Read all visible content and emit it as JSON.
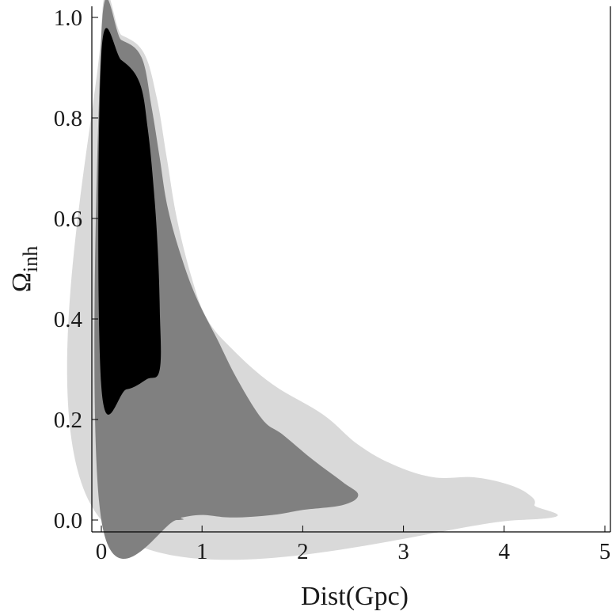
{
  "chart_data": {
    "type": "area",
    "xlabel": "Dist(Gpc)",
    "ylabel": "Ω",
    "ylabel_subscript": "inh",
    "xlim": [
      0,
      5
    ],
    "ylim": [
      0,
      1.0
    ],
    "xticks": [
      "0",
      "1",
      "2",
      "3",
      "4",
      "5"
    ],
    "yticks": [
      "0.0",
      "0.2",
      "0.4",
      "0.6",
      "0.8",
      "1.0"
    ],
    "grid": false,
    "colors": {
      "outer_region": "#d9d9d9",
      "middle_region": "#808080",
      "inner_region": "#000000"
    },
    "regions": [
      {
        "level": "outer",
        "polygon": [
          [
            0.0,
            0.975
          ],
          [
            0.2,
            0.965
          ],
          [
            0.42,
            0.93
          ],
          [
            0.55,
            0.84
          ],
          [
            0.65,
            0.72
          ],
          [
            0.75,
            0.6
          ],
          [
            0.9,
            0.48
          ],
          [
            1.05,
            0.4
          ],
          [
            1.3,
            0.34
          ],
          [
            1.7,
            0.27
          ],
          [
            2.2,
            0.21
          ],
          [
            2.55,
            0.15
          ],
          [
            2.9,
            0.11
          ],
          [
            3.3,
            0.085
          ],
          [
            3.7,
            0.085
          ],
          [
            4.05,
            0.07
          ],
          [
            4.25,
            0.05
          ],
          [
            4.3,
            0.03
          ],
          [
            4.15,
            0.0
          ],
          [
            0.0,
            0.0
          ]
        ]
      },
      {
        "level": "middle",
        "polygon": [
          [
            0.0,
            0.962
          ],
          [
            0.2,
            0.955
          ],
          [
            0.4,
            0.92
          ],
          [
            0.5,
            0.82
          ],
          [
            0.58,
            0.72
          ],
          [
            0.66,
            0.62
          ],
          [
            0.8,
            0.52
          ],
          [
            0.95,
            0.44
          ],
          [
            1.15,
            0.36
          ],
          [
            1.35,
            0.28
          ],
          [
            1.6,
            0.2
          ],
          [
            1.8,
            0.17
          ],
          [
            2.1,
            0.12
          ],
          [
            2.4,
            0.075
          ],
          [
            2.55,
            0.05
          ],
          [
            2.4,
            0.03
          ],
          [
            2.0,
            0.02
          ],
          [
            1.7,
            0.01
          ],
          [
            1.3,
            0.005
          ],
          [
            1.0,
            0.01
          ],
          [
            0.8,
            0.005
          ],
          [
            0.75,
            0.0
          ],
          [
            0.0,
            0.0
          ]
        ]
      },
      {
        "level": "inner",
        "polygon": [
          [
            0.0,
            0.928
          ],
          [
            0.2,
            0.915
          ],
          [
            0.38,
            0.87
          ],
          [
            0.46,
            0.78
          ],
          [
            0.52,
            0.66
          ],
          [
            0.56,
            0.54
          ],
          [
            0.58,
            0.42
          ],
          [
            0.58,
            0.3
          ],
          [
            0.45,
            0.28
          ],
          [
            0.25,
            0.26
          ],
          [
            0.0,
            0.265
          ]
        ]
      }
    ]
  }
}
